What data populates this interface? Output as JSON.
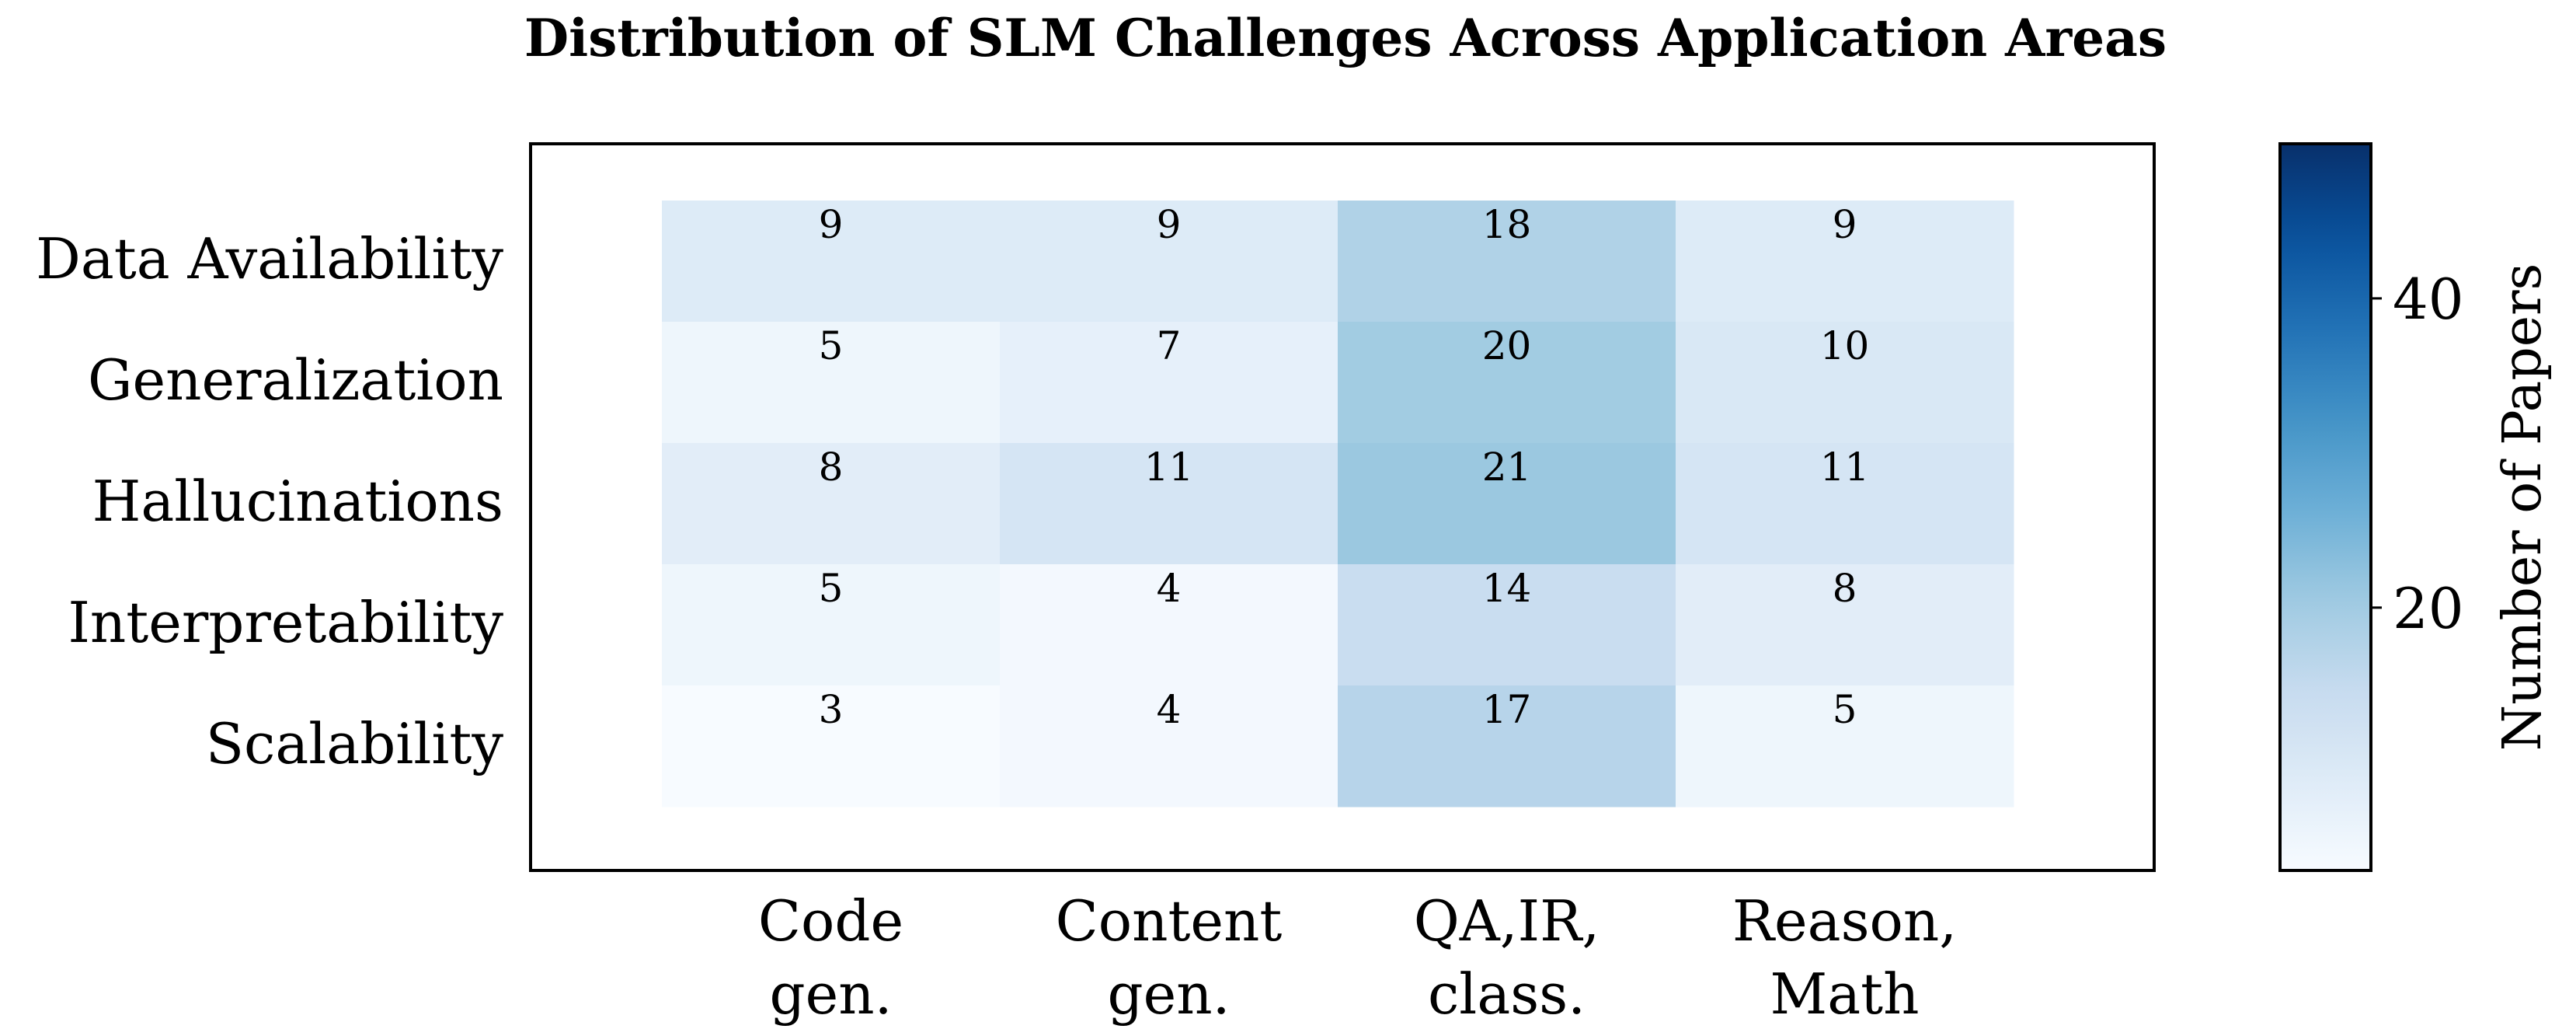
{
  "chart_data": {
    "type": "heatmap",
    "title": "Distribution of SLM Challenges Across Application Areas",
    "rows": [
      "Data Availability",
      "Generalization",
      "Hallucinations",
      "Interpretability",
      "Scalability"
    ],
    "columns": [
      "Code gen.",
      "Content gen.",
      "QA,IR, class.",
      "Reason, Math"
    ],
    "column_label_lines": [
      [
        "Code",
        "gen."
      ],
      [
        "Content",
        "gen."
      ],
      [
        "QA,IR,",
        "class."
      ],
      [
        "Reason,",
        "Math"
      ]
    ],
    "values": [
      [
        9,
        9,
        18,
        9
      ],
      [
        5,
        7,
        20,
        10
      ],
      [
        8,
        11,
        21,
        11
      ],
      [
        5,
        4,
        14,
        8
      ],
      [
        3,
        4,
        17,
        5
      ]
    ],
    "colorbar": {
      "label": "Number of Papers",
      "range": [
        3,
        50
      ],
      "ticks": [
        20,
        40
      ],
      "colormap": "Blues",
      "color_low": "#f7fbff",
      "color_high": "#08306b"
    }
  }
}
